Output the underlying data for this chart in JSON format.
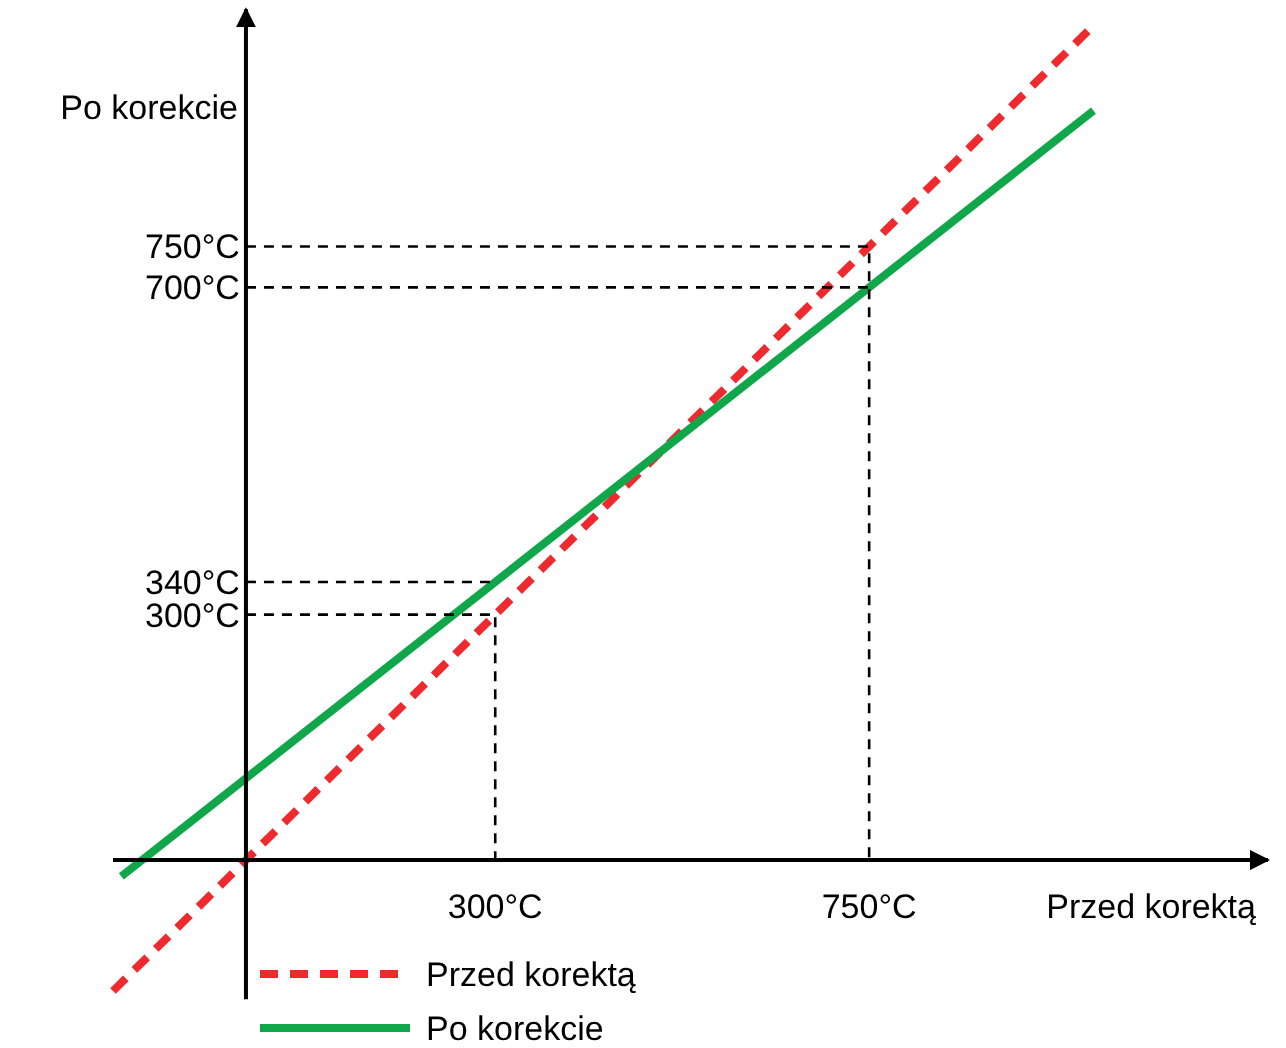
{
  "chart_data": {
    "type": "line",
    "xlabel": "Przed korektą",
    "ylabel": "Po korekcie",
    "xlim": [
      -160,
      1230
    ],
    "ylim": [
      -170,
      1040
    ],
    "xticks": [
      {
        "value": 300,
        "label": "300°C"
      },
      {
        "value": 750,
        "label": "750°C"
      }
    ],
    "yticks": [
      {
        "value": 300,
        "label": "300°C"
      },
      {
        "value": 340,
        "label": "340°C"
      },
      {
        "value": 700,
        "label": "700°C"
      },
      {
        "value": 750,
        "label": "750°C"
      }
    ],
    "grid": false,
    "legend": "bottom",
    "marker": "none",
    "series": [
      {
        "name": "Przed korektą",
        "color": "#ee2a2f",
        "line_style": "dashed",
        "x": [
          -160,
          1020
        ],
        "values": [
          -160,
          1020
        ]
      },
      {
        "name": "Po korekcie",
        "color": "#10a64a",
        "line_style": "solid",
        "x": [
          -150,
          1020
        ],
        "values": [
          -20,
          916
        ]
      },
      {
        "color": "#000000",
        "line_style": "dashed",
        "x": [
          0,
          300,
          300
        ],
        "values": [
          300,
          300,
          0
        ]
      },
      {
        "color": "#000000",
        "line_style": "dashed",
        "x": [
          0,
          300
        ],
        "values": [
          340,
          340
        ]
      },
      {
        "color": "#000000",
        "line_style": "dashed",
        "x": [
          0,
          750,
          750
        ],
        "values": [
          750,
          750,
          0
        ]
      },
      {
        "color": "#000000",
        "line_style": "dashed",
        "x": [
          0,
          750
        ],
        "values": [
          700,
          700
        ]
      }
    ]
  }
}
